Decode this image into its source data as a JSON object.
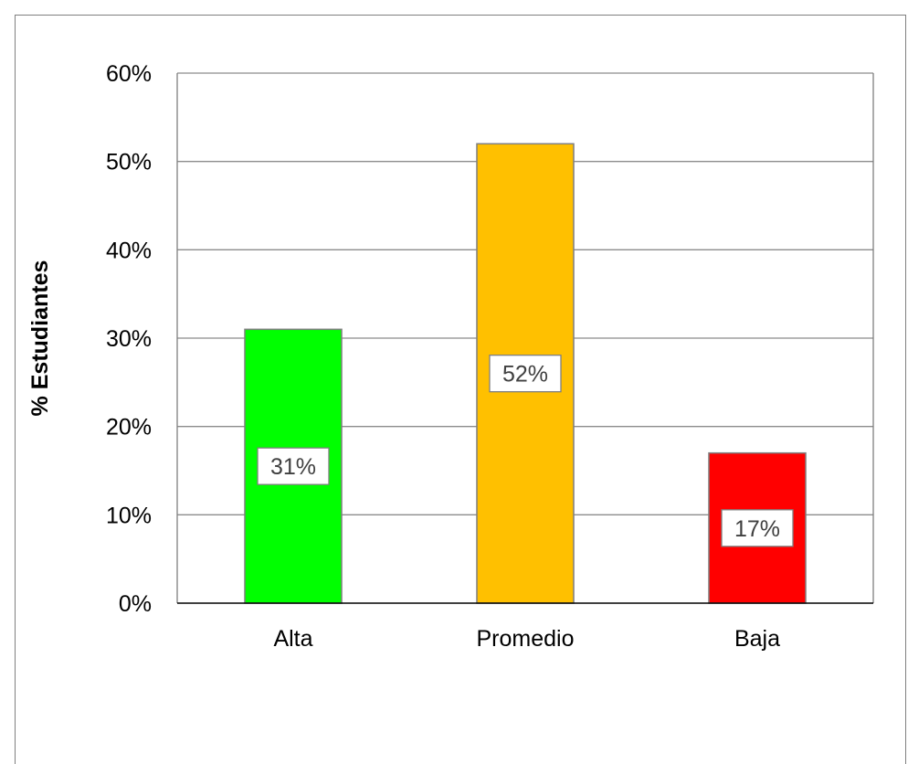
{
  "chart_data": {
    "type": "bar",
    "categories": [
      "Alta",
      "Promedio",
      "Baja"
    ],
    "values": [
      31,
      52,
      17
    ],
    "data_labels": [
      "31%",
      "52%",
      "17%"
    ],
    "colors": [
      "#00ff00",
      "#ffc000",
      "#ff0000"
    ],
    "bar_border_color": "#7f7f7f",
    "title": "",
    "xlabel": "",
    "ylabel": "% Estudiantes",
    "ylim": [
      0,
      60
    ],
    "yticks": [
      0,
      10,
      20,
      30,
      40,
      50,
      60
    ],
    "ytick_labels": [
      "0%",
      "10%",
      "20%",
      "30%",
      "40%",
      "50%",
      "60%"
    ],
    "grid": true,
    "legend": "none"
  }
}
